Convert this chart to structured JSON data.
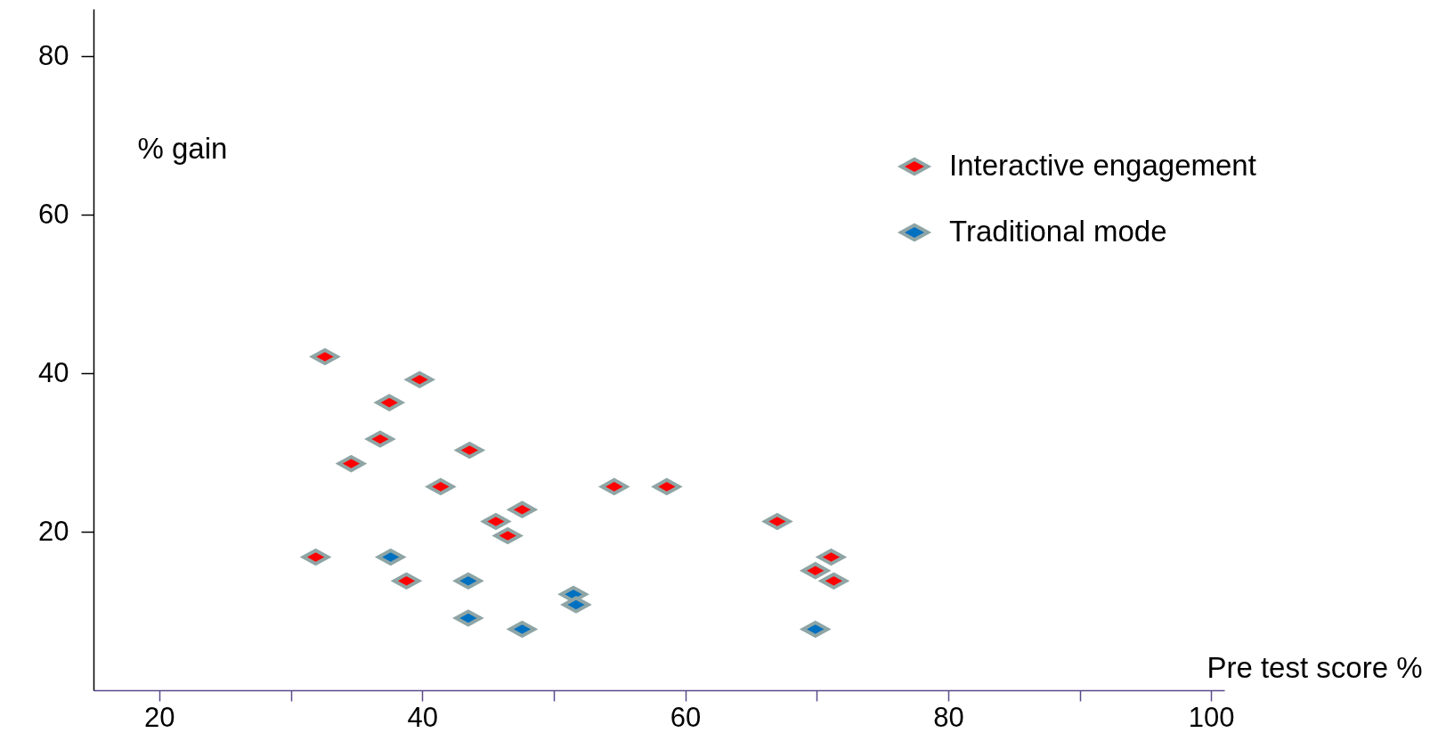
{
  "chart_data": {
    "type": "scatter",
    "xlabel": "Pre test score %",
    "ylabel": "% gain",
    "xlim": [
      15,
      101
    ],
    "ylim": [
      0,
      86
    ],
    "xticks": [
      20,
      {
        "value": 30,
        "label": null
      },
      40,
      {
        "value": 50,
        "label": null
      },
      60,
      {
        "value": 70,
        "label": null
      },
      80,
      {
        "value": 90,
        "label": null
      },
      100
    ],
    "yticks": [
      20,
      40,
      60,
      80
    ],
    "grid": false,
    "legend": "top right",
    "marker": "diamond",
    "series": [
      {
        "name": "Interactive engagement",
        "color": "#ff0000",
        "x": [
          32.6,
          39.8,
          37.5,
          36.8,
          34.6,
          43.6,
          41.4,
          45.6,
          47.6,
          46.5,
          54.6,
          58.6,
          67.0,
          31.9,
          38.8,
          71.1,
          69.9,
          71.3
        ],
        "values": [
          42.1,
          39.2,
          36.3,
          31.7,
          28.6,
          30.3,
          25.7,
          21.3,
          22.8,
          19.5,
          25.7,
          25.7,
          21.3,
          16.8,
          13.8,
          16.8,
          15.1,
          13.8
        ]
      },
      {
        "name": "Traditional mode",
        "color": "#0070c0",
        "x": [
          37.6,
          43.5,
          43.5,
          47.6,
          51.5,
          51.7,
          69.9
        ],
        "values": [
          16.8,
          13.8,
          9.1,
          7.7,
          12.1,
          10.8,
          7.7
        ]
      }
    ]
  }
}
